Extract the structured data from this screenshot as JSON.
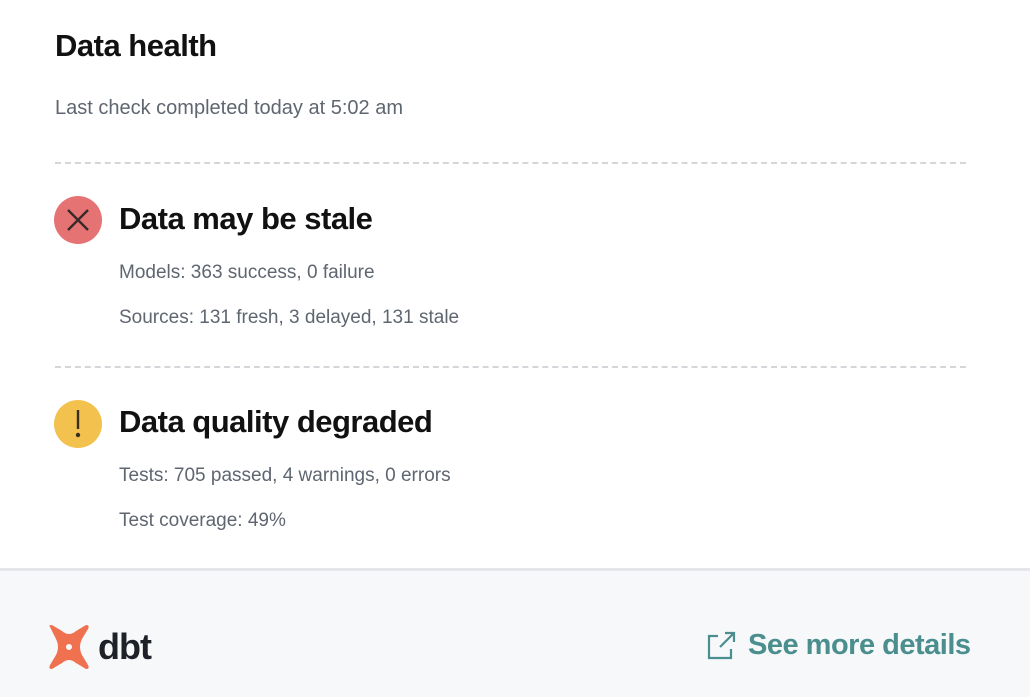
{
  "header": {
    "title": "Data health",
    "subtitle": "Last check completed today at 5:02 am"
  },
  "sections": [
    {
      "status": "error",
      "icon": "x-circle-icon",
      "color": "#e57373",
      "title": "Data may be stale",
      "lines": [
        "Models: 363 success, 0 failure",
        "Sources: 131 fresh, 3 delayed, 131 stale"
      ]
    },
    {
      "status": "warning",
      "icon": "exclamation-circle-icon",
      "color": "#f2c14e",
      "title": "Data quality degraded",
      "lines": [
        "Tests: 705 passed, 4 warnings, 0 errors",
        "Test coverage: 49%"
      ]
    }
  ],
  "footer": {
    "logo_text": "dbt",
    "logo_color": "#f0714f",
    "link_label": "See more details",
    "link_color": "#4b8e8e"
  }
}
